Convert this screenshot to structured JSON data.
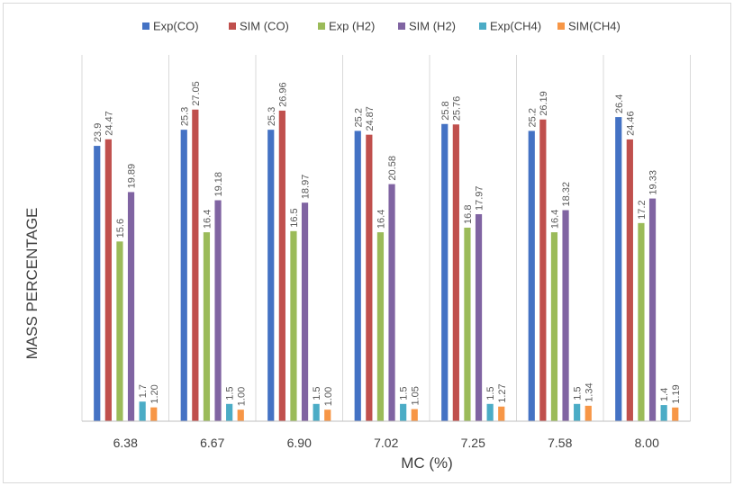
{
  "chart_data": {
    "type": "bar",
    "title": "",
    "xlabel": "MC (%)",
    "ylabel": "MASS PERCENTAGE",
    "ylim": [
      0,
      30
    ],
    "grid": false,
    "legend_position": "top",
    "categories": [
      "6.38",
      "6.67",
      "6.90",
      "7.02",
      "7.25",
      "7.58",
      "8.00"
    ],
    "series": [
      {
        "name": "Exp(CO)",
        "color": "#4472C4",
        "values": [
          23.9,
          25.3,
          25.3,
          25.2,
          25.8,
          25.2,
          26.4
        ],
        "labels": [
          "23.9",
          "25.3",
          "25.3",
          "25.2",
          "25.8",
          "25.2",
          "26.4"
        ]
      },
      {
        "name": "SIM (CO)",
        "color": "#C0504D",
        "values": [
          24.47,
          27.05,
          26.96,
          24.87,
          25.76,
          26.19,
          24.46
        ],
        "labels": [
          "24.47",
          "27.05",
          "26.96",
          "24.87",
          "25.76",
          "26.19",
          "24.46"
        ]
      },
      {
        "name": "Exp (H2)",
        "color": "#9BBB59",
        "values": [
          15.6,
          16.4,
          16.5,
          16.4,
          16.8,
          16.4,
          17.2
        ],
        "labels": [
          "15.6",
          "16.4",
          "16.5",
          "16.4",
          "16.8",
          "16.4",
          "17.2"
        ]
      },
      {
        "name": "SIM (H2)",
        "color": "#8064A2",
        "values": [
          19.89,
          19.18,
          18.97,
          20.58,
          17.97,
          18.32,
          19.33
        ],
        "labels": [
          "19.89",
          "19.18",
          "18.97",
          "20.58",
          "17.97",
          "18.32",
          "19.33"
        ]
      },
      {
        "name": "Exp(CH4)",
        "color": "#4BACC6",
        "values": [
          1.7,
          1.5,
          1.5,
          1.5,
          1.5,
          1.5,
          1.4
        ],
        "labels": [
          "1.7",
          "1.5",
          "1.5",
          "1.5",
          "1.5",
          "1.5",
          "1.4"
        ]
      },
      {
        "name": "SIM(CH4)",
        "color": "#F79646",
        "values": [
          1.2,
          1.0,
          1.0,
          1.05,
          1.27,
          1.34,
          1.19
        ],
        "labels": [
          "1.20",
          "1.00",
          "1.00",
          "1.05",
          "1.27",
          "1.34",
          "1.19"
        ]
      }
    ]
  }
}
